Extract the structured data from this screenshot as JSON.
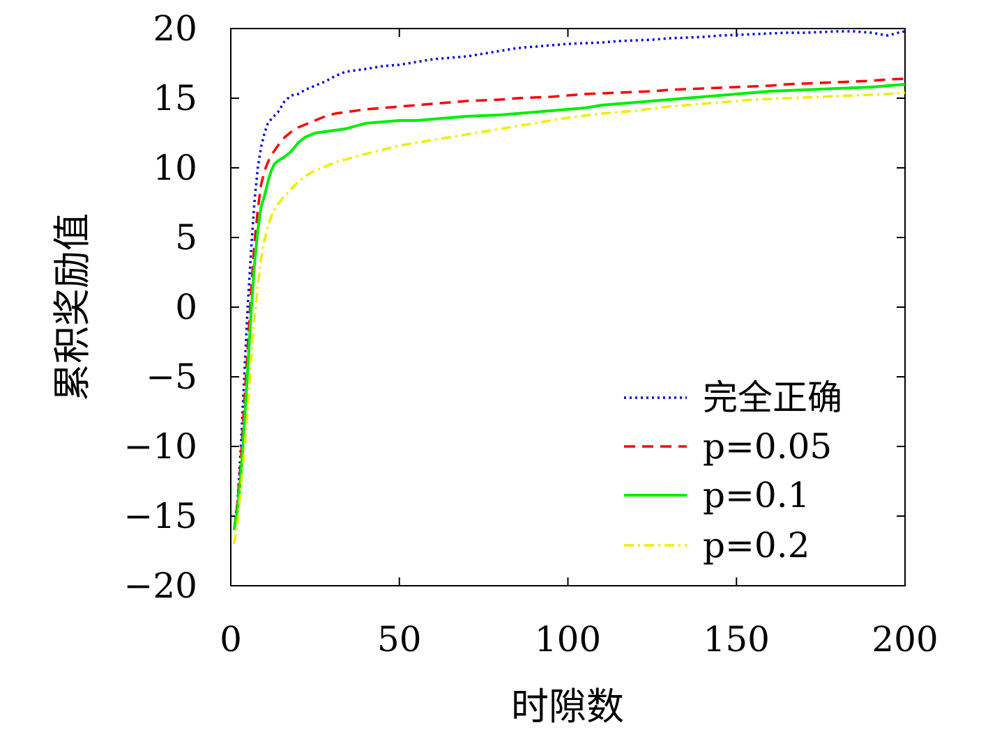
{
  "chart_data": {
    "type": "line",
    "xlabel": "时隙数",
    "ylabel": "累积奖励值",
    "xlim": [
      0,
      200
    ],
    "ylim": [
      -20,
      20
    ],
    "x_ticks": [
      "0",
      "50",
      "100",
      "150",
      "200"
    ],
    "y_ticks": [
      "20",
      "15",
      "10",
      "5",
      "0",
      "−5",
      "−10",
      "−15",
      "−20"
    ],
    "legend_position": "bottom-right",
    "grid": false,
    "series": [
      {
        "name": "完全正确",
        "color": "#0000dd",
        "dash": "dotted",
        "points": [
          [
            1,
            -16
          ],
          [
            2,
            -14
          ],
          [
            3,
            -10
          ],
          [
            4,
            -5
          ],
          [
            5,
            0
          ],
          [
            6,
            4
          ],
          [
            7,
            7.5
          ],
          [
            8,
            10
          ],
          [
            9,
            11.5
          ],
          [
            10,
            12.5
          ],
          [
            11,
            13.2
          ],
          [
            12,
            13.5
          ],
          [
            14,
            14
          ],
          [
            16,
            14.8
          ],
          [
            18,
            15.2
          ],
          [
            20,
            15.3
          ],
          [
            22,
            15.6
          ],
          [
            25,
            15.9
          ],
          [
            28,
            16.2
          ],
          [
            31,
            16.6
          ],
          [
            34,
            16.9
          ],
          [
            37,
            17
          ],
          [
            40,
            17.1
          ],
          [
            45,
            17.3
          ],
          [
            50,
            17.4
          ],
          [
            55,
            17.6
          ],
          [
            60,
            17.8
          ],
          [
            65,
            17.9
          ],
          [
            70,
            18
          ],
          [
            75,
            18.2
          ],
          [
            80,
            18.4
          ],
          [
            85,
            18.6
          ],
          [
            90,
            18.7
          ],
          [
            95,
            18.8
          ],
          [
            100,
            18.9
          ],
          [
            105,
            18.95
          ],
          [
            110,
            19
          ],
          [
            115,
            19.1
          ],
          [
            120,
            19.15
          ],
          [
            125,
            19.2
          ],
          [
            130,
            19.3
          ],
          [
            135,
            19.35
          ],
          [
            140,
            19.4
          ],
          [
            145,
            19.5
          ],
          [
            150,
            19.55
          ],
          [
            155,
            19.6
          ],
          [
            160,
            19.65
          ],
          [
            165,
            19.7
          ],
          [
            170,
            19.7
          ],
          [
            175,
            19.75
          ],
          [
            180,
            19.8
          ],
          [
            185,
            19.8
          ],
          [
            190,
            19.7
          ],
          [
            195,
            19.5
          ],
          [
            198,
            19.7
          ],
          [
            200,
            19.8
          ]
        ]
      },
      {
        "name": "p=0.05",
        "color": "#ff0000",
        "dash": "dashed",
        "points": [
          [
            1,
            -16
          ],
          [
            2,
            -14
          ],
          [
            3,
            -11
          ],
          [
            4,
            -7
          ],
          [
            5,
            -3
          ],
          [
            6,
            1
          ],
          [
            7,
            4.5
          ],
          [
            8,
            7
          ],
          [
            9,
            8.8
          ],
          [
            10,
            9.8
          ],
          [
            11,
            10.4
          ],
          [
            12,
            10.9
          ],
          [
            14,
            11.6
          ],
          [
            16,
            12.2
          ],
          [
            18,
            12.6
          ],
          [
            20,
            12.9
          ],
          [
            22,
            13.1
          ],
          [
            25,
            13.4
          ],
          [
            28,
            13.7
          ],
          [
            31,
            13.9
          ],
          [
            34,
            14
          ],
          [
            37,
            14.1
          ],
          [
            40,
            14.2
          ],
          [
            45,
            14.3
          ],
          [
            50,
            14.4
          ],
          [
            55,
            14.5
          ],
          [
            60,
            14.6
          ],
          [
            65,
            14.7
          ],
          [
            70,
            14.8
          ],
          [
            75,
            14.85
          ],
          [
            80,
            14.9
          ],
          [
            85,
            15
          ],
          [
            90,
            15.05
          ],
          [
            95,
            15.1
          ],
          [
            100,
            15.2
          ],
          [
            105,
            15.3
          ],
          [
            110,
            15.35
          ],
          [
            115,
            15.4
          ],
          [
            120,
            15.45
          ],
          [
            125,
            15.5
          ],
          [
            130,
            15.6
          ],
          [
            135,
            15.65
          ],
          [
            140,
            15.7
          ],
          [
            145,
            15.75
          ],
          [
            150,
            15.8
          ],
          [
            155,
            15.85
          ],
          [
            160,
            15.9
          ],
          [
            165,
            16
          ],
          [
            170,
            16.05
          ],
          [
            175,
            16.1
          ],
          [
            180,
            16.15
          ],
          [
            185,
            16.2
          ],
          [
            190,
            16.25
          ],
          [
            195,
            16.35
          ],
          [
            200,
            16.4
          ]
        ]
      },
      {
        "name": "p=0.1",
        "color": "#00ee00",
        "dash": "solid",
        "points": [
          [
            1,
            -16
          ],
          [
            2,
            -14.5
          ],
          [
            3,
            -12
          ],
          [
            4,
            -8.5
          ],
          [
            5,
            -4.5
          ],
          [
            6,
            -0.5
          ],
          [
            7,
            3
          ],
          [
            8,
            5.5
          ],
          [
            9,
            7.2
          ],
          [
            10,
            8
          ],
          [
            11,
            9
          ],
          [
            12,
            9.8
          ],
          [
            13,
            10.3
          ],
          [
            14,
            10.5
          ],
          [
            16,
            10.8
          ],
          [
            18,
            11.2
          ],
          [
            20,
            11.8
          ],
          [
            22,
            12.2
          ],
          [
            25,
            12.5
          ],
          [
            28,
            12.6
          ],
          [
            31,
            12.7
          ],
          [
            34,
            12.8
          ],
          [
            37,
            13
          ],
          [
            40,
            13.2
          ],
          [
            45,
            13.3
          ],
          [
            50,
            13.4
          ],
          [
            55,
            13.4
          ],
          [
            60,
            13.5
          ],
          [
            65,
            13.6
          ],
          [
            70,
            13.7
          ],
          [
            75,
            13.75
          ],
          [
            80,
            13.8
          ],
          [
            85,
            13.9
          ],
          [
            90,
            14
          ],
          [
            95,
            14.1
          ],
          [
            100,
            14.2
          ],
          [
            105,
            14.3
          ],
          [
            110,
            14.5
          ],
          [
            115,
            14.6
          ],
          [
            120,
            14.7
          ],
          [
            125,
            14.8
          ],
          [
            130,
            14.9
          ],
          [
            135,
            15
          ],
          [
            140,
            15.1
          ],
          [
            145,
            15.2
          ],
          [
            150,
            15.3
          ],
          [
            155,
            15.4
          ],
          [
            160,
            15.5
          ],
          [
            165,
            15.55
          ],
          [
            170,
            15.6
          ],
          [
            175,
            15.65
          ],
          [
            180,
            15.7
          ],
          [
            185,
            15.75
          ],
          [
            190,
            15.8
          ],
          [
            195,
            15.9
          ],
          [
            200,
            16
          ]
        ]
      },
      {
        "name": "p=0.2",
        "color": "#eeee00",
        "dash": "dashdot",
        "points": [
          [
            1,
            -17
          ],
          [
            2,
            -15.5
          ],
          [
            3,
            -13
          ],
          [
            4,
            -10.5
          ],
          [
            5,
            -7.5
          ],
          [
            6,
            -4
          ],
          [
            7,
            -1
          ],
          [
            8,
            1.5
          ],
          [
            9,
            3.5
          ],
          [
            10,
            4.8
          ],
          [
            11,
            5.8
          ],
          [
            12,
            6.5
          ],
          [
            13,
            7
          ],
          [
            14,
            7.4
          ],
          [
            16,
            8
          ],
          [
            18,
            8.5
          ],
          [
            20,
            9
          ],
          [
            22,
            9.4
          ],
          [
            25,
            9.8
          ],
          [
            28,
            10.1
          ],
          [
            31,
            10.4
          ],
          [
            34,
            10.6
          ],
          [
            37,
            10.8
          ],
          [
            40,
            11
          ],
          [
            45,
            11.3
          ],
          [
            50,
            11.6
          ],
          [
            55,
            11.8
          ],
          [
            60,
            12
          ],
          [
            65,
            12.2
          ],
          [
            70,
            12.4
          ],
          [
            75,
            12.6
          ],
          [
            80,
            12.8
          ],
          [
            85,
            13
          ],
          [
            90,
            13.2
          ],
          [
            95,
            13.4
          ],
          [
            100,
            13.6
          ],
          [
            105,
            13.75
          ],
          [
            110,
            13.9
          ],
          [
            115,
            14
          ],
          [
            120,
            14.1
          ],
          [
            125,
            14.25
          ],
          [
            130,
            14.4
          ],
          [
            135,
            14.5
          ],
          [
            140,
            14.6
          ],
          [
            145,
            14.7
          ],
          [
            150,
            14.8
          ],
          [
            155,
            14.9
          ],
          [
            160,
            14.95
          ],
          [
            165,
            15
          ],
          [
            170,
            15.05
          ],
          [
            175,
            15.1
          ],
          [
            180,
            15.15
          ],
          [
            185,
            15.2
          ],
          [
            190,
            15.25
          ],
          [
            195,
            15.3
          ],
          [
            200,
            15.4
          ]
        ]
      }
    ]
  }
}
